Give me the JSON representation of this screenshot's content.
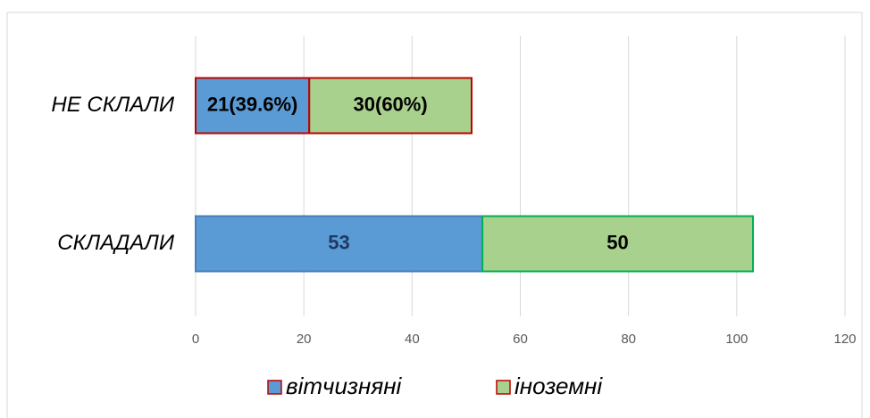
{
  "chart_data": {
    "type": "stacked_barh",
    "categories": [
      "НЕ СКЛАЛИ",
      "СКЛАДАЛИ"
    ],
    "series": [
      {
        "name": "вітчизняні",
        "color": "#5b9bd5",
        "edgecolors": [
          "#c00000",
          "#4a7ebb"
        ],
        "label_colors": [
          "#000000",
          "#203864"
        ],
        "values": [
          21,
          53
        ],
        "value_labels": [
          "21(39.6%)",
          "53"
        ]
      },
      {
        "name": "іноземні",
        "color": "#a9d18e",
        "edgecolors": [
          "#c00000",
          "#00b050"
        ],
        "label_colors": [
          "#000000",
          "#000000"
        ],
        "values": [
          30,
          50
        ],
        "value_labels": [
          "30(60%)",
          "50"
        ]
      }
    ],
    "xlim": [
      0,
      120
    ],
    "xticks": [
      0,
      20,
      40,
      60,
      80,
      100,
      120
    ],
    "grid": true,
    "legend": "bottom"
  }
}
